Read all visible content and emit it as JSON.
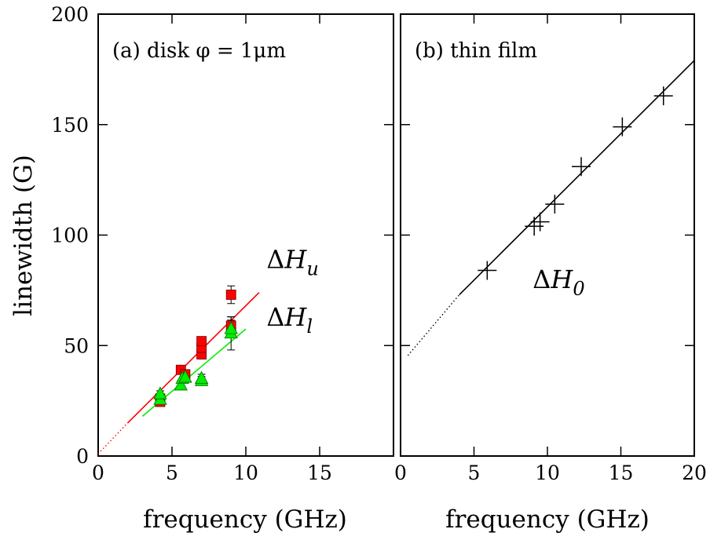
{
  "chart_data": [
    {
      "type": "scatter",
      "panel_label": "(a) disk φ = 1μm",
      "xlabel": "frequency (GHz)",
      "ylabel": "linewidth (G)",
      "xlim": [
        0,
        20
      ],
      "ylim": [
        0,
        200
      ],
      "xticks": [
        "0",
        "5",
        "10",
        "15"
      ],
      "yticks": [
        "0",
        "50",
        "100",
        "150",
        "200"
      ],
      "series": [
        {
          "name": "ΔHu",
          "marker": "square",
          "color": "#ff0000",
          "points": [
            {
              "x": 4.2,
              "y": 24.5,
              "err": 1.5
            },
            {
              "x": 4.2,
              "y": 26.0,
              "err": 1.5
            },
            {
              "x": 5.6,
              "y": 39.0,
              "err": 2.0
            },
            {
              "x": 5.9,
              "y": 37.0,
              "err": 2.0
            },
            {
              "x": 7.0,
              "y": 46.0,
              "err": 2.0
            },
            {
              "x": 7.0,
              "y": 49.0,
              "err": 2.0
            },
            {
              "x": 7.0,
              "y": 52.0,
              "err": 2.0
            },
            {
              "x": 9.0,
              "y": 59.0,
              "err": 4.0
            },
            {
              "x": 9.0,
              "y": 73.0,
              "err": 4.0
            }
          ],
          "fit": {
            "x": [
              2.0,
              10.9
            ],
            "y": [
              15.0,
              74.0
            ],
            "extrapolated_to": {
              "x": 0.0,
              "y": 1.0
            }
          }
        },
        {
          "name": "ΔHl",
          "marker": "triangle",
          "color": "#00ee00",
          "points": [
            {
              "x": 4.2,
              "y": 25.5,
              "err": 1.5
            },
            {
              "x": 4.2,
              "y": 28.0,
              "err": 1.5
            },
            {
              "x": 5.6,
              "y": 32.0,
              "err": 2.0
            },
            {
              "x": 5.7,
              "y": 35.0,
              "err": 2.0
            },
            {
              "x": 5.9,
              "y": 35.5,
              "err": 2.0
            },
            {
              "x": 7.0,
              "y": 34.0,
              "err": 2.0
            },
            {
              "x": 7.0,
              "y": 35.0,
              "err": 2.0
            },
            {
              "x": 9.0,
              "y": 55.5,
              "err": 7.5
            },
            {
              "x": 9.0,
              "y": 57.5,
              "err": 4.0
            }
          ],
          "fit": {
            "x": [
              3.0,
              10.0
            ],
            "y": [
              18.0,
              57.5
            ]
          }
        }
      ],
      "annotations": [
        {
          "text": "ΔH",
          "sub": "u",
          "x": 11.4,
          "y": 85
        },
        {
          "text": "ΔH",
          "sub": "l",
          "x": 11.4,
          "y": 59
        }
      ]
    },
    {
      "type": "scatter",
      "panel_label": "(b) thin film",
      "xlabel": "frequency (GHz)",
      "xlim": [
        0,
        20
      ],
      "ylim": [
        0,
        200
      ],
      "xticks": [
        "0",
        "5",
        "10",
        "15",
        "20"
      ],
      "series": [
        {
          "name": "ΔH0",
          "marker": "plus",
          "color": "#000000",
          "points": [
            {
              "x": 5.9,
              "y": 84
            },
            {
              "x": 9.1,
              "y": 104
            },
            {
              "x": 9.5,
              "y": 106
            },
            {
              "x": 10.5,
              "y": 114
            },
            {
              "x": 12.3,
              "y": 131
            },
            {
              "x": 15.1,
              "y": 149
            },
            {
              "x": 17.9,
              "y": 163
            }
          ],
          "fit": {
            "x": [
              4.0,
              20.0
            ],
            "y": [
              73.0,
              179.0
            ],
            "extrapolated_to": {
              "x": 0.5,
              "y": 45.5
            }
          }
        }
      ],
      "annotations": [
        {
          "text": "ΔH",
          "sub": "0",
          "x": 9.0,
          "y": 76
        }
      ]
    }
  ]
}
